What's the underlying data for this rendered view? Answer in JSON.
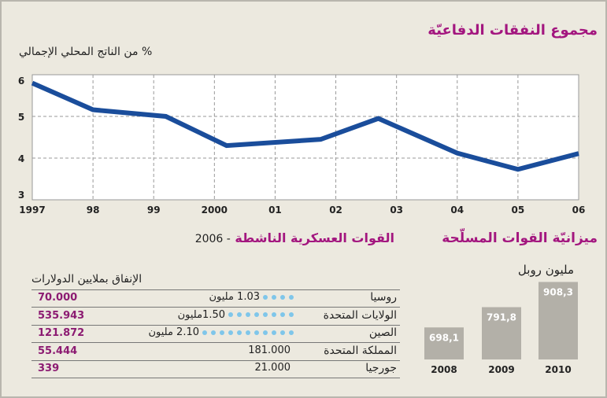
{
  "colors": {
    "accent": "#a3167f",
    "line": "#1a4d9b",
    "value": "#8c1b72",
    "dot": "#7fc6ea",
    "bar": "#b3b0a8"
  },
  "line_section": {
    "title": "مجموع النفقات الدفاعيّة",
    "unit": "% من الناتج المحلي الإجمالي"
  },
  "forces_section": {
    "title": "القوات العسكرية الناشطة",
    "year_suffix": "- 2006",
    "spending_header": "الإنفاق بملايين الدولارات",
    "rows": [
      {
        "country": "روسيا",
        "forces": "1.03 مليون",
        "dots": 4,
        "spending": "70.000"
      },
      {
        "country": "الولايات المتحدة",
        "forces": "1.50مليون",
        "dots": 8,
        "spending": "535.943"
      },
      {
        "country": "الصين",
        "forces": "2.10 مليون",
        "dots": 11,
        "spending": "121.872"
      },
      {
        "country": "المملكة المتحدة",
        "forces": "181.000",
        "dots": 0,
        "spending": "55.444"
      },
      {
        "country": "جورجيا",
        "forces": "21.000",
        "dots": 0,
        "spending": "339"
      }
    ]
  },
  "budget_section": {
    "title": "ميزانيّة القوات المسلّحة",
    "unit": "مليون روبل"
  },
  "chart_data": [
    {
      "type": "line",
      "title": "مجموع النفقات الدفاعيّة",
      "ylabel": "% من الناتج المحلي الإجمالي",
      "xlabel": "",
      "x": [
        1997,
        1998,
        1999.2,
        2000.2,
        2001.75,
        2002.7,
        2004,
        2005,
        2006
      ],
      "y": [
        5.8,
        5.16,
        5.0,
        4.3,
        4.45,
        4.95,
        4.12,
        3.73,
        4.11
      ],
      "xticks": [
        1997,
        1998,
        1999,
        2000,
        2001,
        2002,
        2003,
        2004,
        2005,
        2006
      ],
      "xtick_labels": [
        "1997",
        "98",
        "99",
        "2000",
        "01",
        "02",
        "03",
        "04",
        "05",
        "06"
      ],
      "yticks": [
        3,
        4,
        5,
        6
      ],
      "ytick_labels": [
        "3",
        "4",
        "5",
        "6"
      ],
      "xlim": [
        1997,
        2006
      ],
      "ylim": [
        3,
        6
      ],
      "grid": true
    },
    {
      "type": "bar",
      "title": "ميزانيّة القوات المسلّحة",
      "ylabel": "مليون روبل",
      "categories": [
        "2008",
        "2009",
        "2010"
      ],
      "values": [
        698.1,
        791.8,
        908.3
      ],
      "value_labels": [
        "698,1",
        "791,8",
        "908,3"
      ]
    }
  ]
}
